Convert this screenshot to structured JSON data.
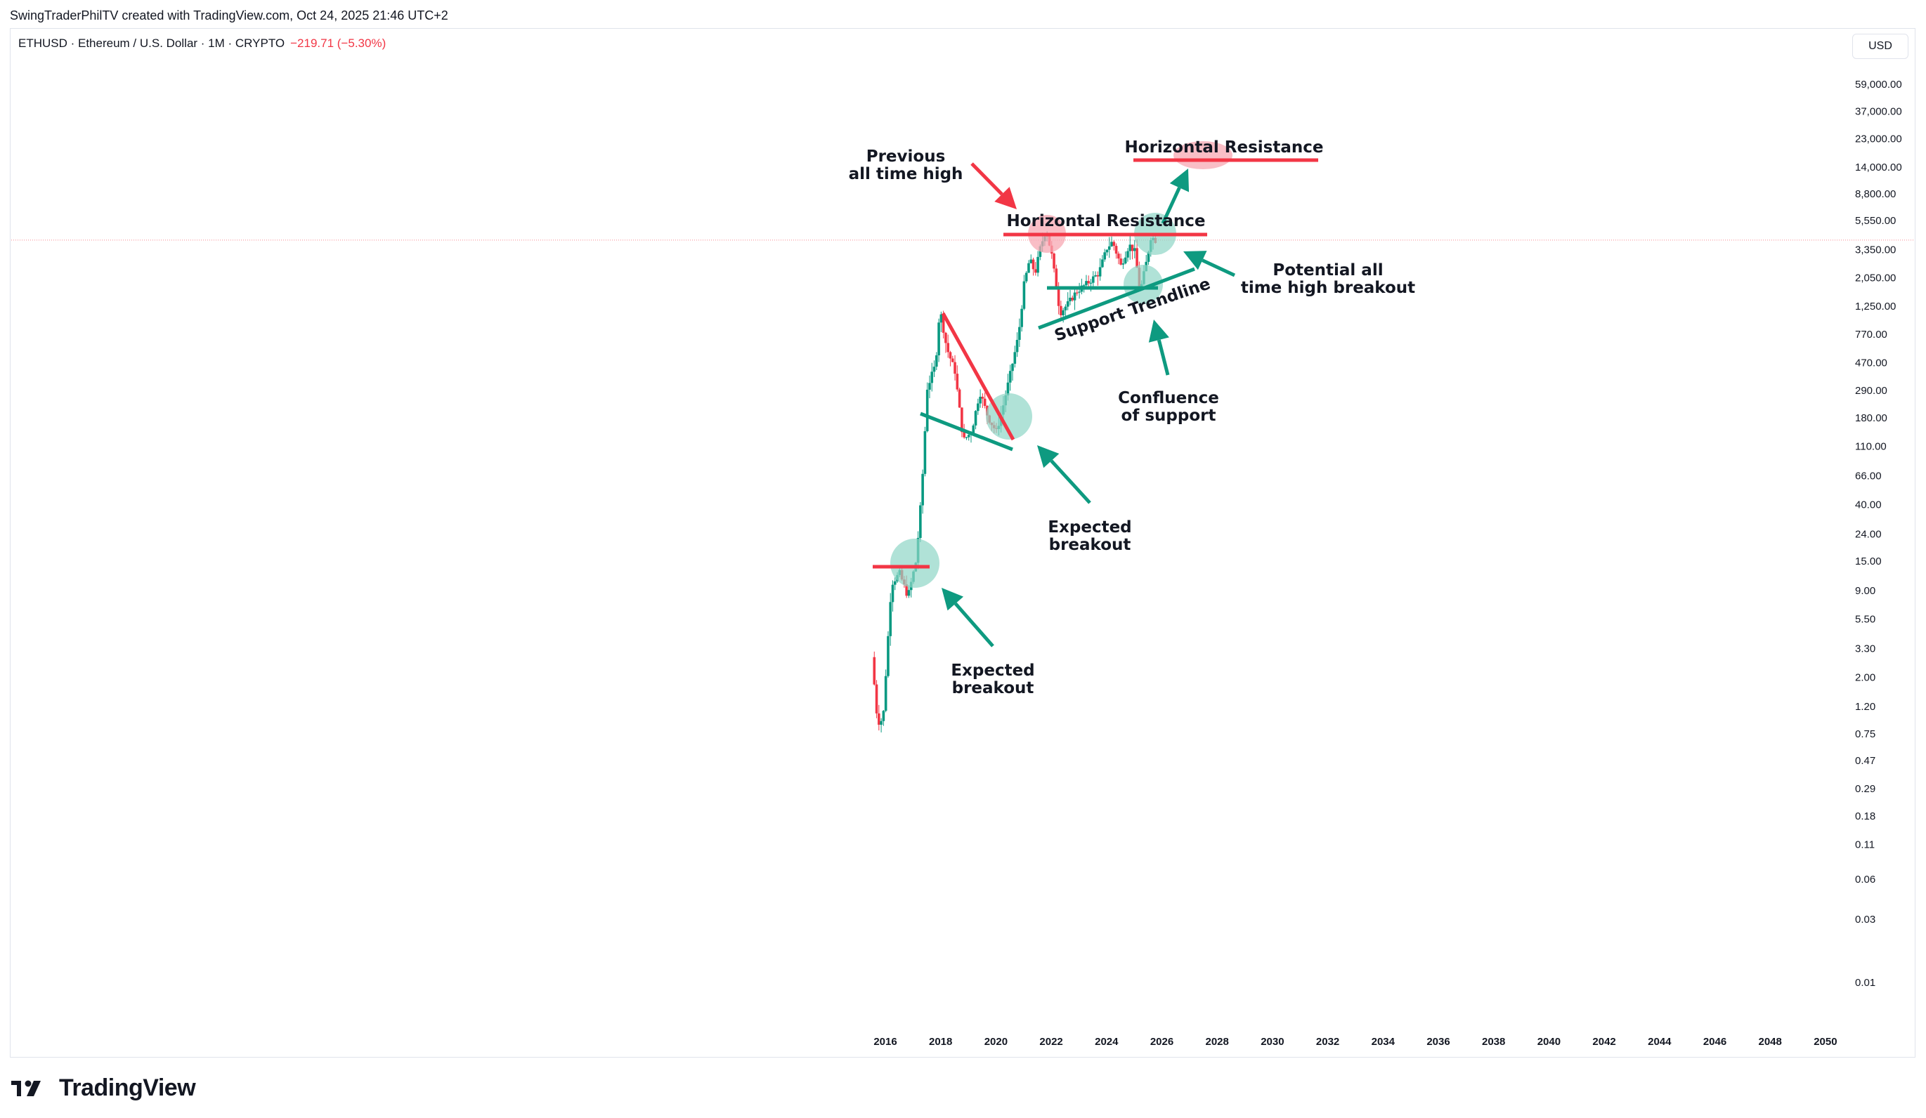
{
  "header": {
    "credit": "SwingTraderPhilTV created with TradingView.com, Oct 24, 2025 21:46 UTC+2"
  },
  "legend": {
    "symbol": "ETHUSD · Ethereum / U.S. Dollar · 1M · CRYPTO",
    "change": "−219.71 (−5.30%)"
  },
  "currency_button": "USD",
  "brand": {
    "logo_icon": "tradingview-logo-icon",
    "name": "TradingView"
  },
  "colors": {
    "up": "#089981",
    "down": "#f23645",
    "resistance": "#f23645",
    "support": "#0e9a80",
    "circle_green": "#8fd6c6",
    "circle_red": "#f7a8b3"
  },
  "chart_data": {
    "type": "candlestick",
    "symbol": "ETHUSD",
    "interval": "1M",
    "y_scale": "log",
    "y_ticks": [
      "59,000.00",
      "37,000.00",
      "23,000.00",
      "14,000.00",
      "8,800.00",
      "5,550.00",
      "3,350.00",
      "2,050.00",
      "1,250.00",
      "770.00",
      "470.00",
      "290.00",
      "180.00",
      "110.00",
      "66.00",
      "40.00",
      "24.00",
      "15.00",
      "9.00",
      "5.50",
      "3.30",
      "2.00",
      "1.20",
      "0.75",
      "0.47",
      "0.29",
      "0.18",
      "0.11",
      "0.06",
      "0.03",
      "0.01"
    ],
    "x_ticks": [
      "2016",
      "2018",
      "2020",
      "2022",
      "2024",
      "2026",
      "2028",
      "2030",
      "2032",
      "2034",
      "2036",
      "2038",
      "2040",
      "2042",
      "2044",
      "2046",
      "2048",
      "2050"
    ],
    "price_path": [
      {
        "t": 2015.6,
        "v": 2.8
      },
      {
        "t": 2015.8,
        "v": 0.9
      },
      {
        "t": 2016.0,
        "v": 0.95
      },
      {
        "t": 2016.3,
        "v": 10
      },
      {
        "t": 2016.6,
        "v": 12
      },
      {
        "t": 2016.9,
        "v": 8
      },
      {
        "t": 2017.2,
        "v": 15
      },
      {
        "t": 2017.4,
        "v": 50
      },
      {
        "t": 2017.6,
        "v": 300
      },
      {
        "t": 2017.9,
        "v": 450
      },
      {
        "t": 2018.05,
        "v": 1200
      },
      {
        "t": 2018.3,
        "v": 600
      },
      {
        "t": 2018.6,
        "v": 400
      },
      {
        "t": 2018.9,
        "v": 120
      },
      {
        "t": 2019.2,
        "v": 140
      },
      {
        "t": 2019.5,
        "v": 280
      },
      {
        "t": 2019.8,
        "v": 180
      },
      {
        "t": 2020.1,
        "v": 140
      },
      {
        "t": 2020.3,
        "v": 200
      },
      {
        "t": 2020.6,
        "v": 380
      },
      {
        "t": 2020.9,
        "v": 750
      },
      {
        "t": 2021.1,
        "v": 1800
      },
      {
        "t": 2021.3,
        "v": 2800
      },
      {
        "t": 2021.5,
        "v": 2200
      },
      {
        "t": 2021.7,
        "v": 3500
      },
      {
        "t": 2021.9,
        "v": 4700
      },
      {
        "t": 2022.1,
        "v": 3000
      },
      {
        "t": 2022.4,
        "v": 1100
      },
      {
        "t": 2022.7,
        "v": 1300
      },
      {
        "t": 2023.0,
        "v": 1600
      },
      {
        "t": 2023.4,
        "v": 1850
      },
      {
        "t": 2023.8,
        "v": 2200
      },
      {
        "t": 2024.1,
        "v": 3400
      },
      {
        "t": 2024.3,
        "v": 3800
      },
      {
        "t": 2024.6,
        "v": 2500
      },
      {
        "t": 2024.9,
        "v": 3600
      },
      {
        "t": 2025.1,
        "v": 3200
      },
      {
        "t": 2025.3,
        "v": 1600
      },
      {
        "t": 2025.5,
        "v": 2500
      },
      {
        "t": 2025.7,
        "v": 4300
      },
      {
        "t": 2025.8,
        "v": 3900
      }
    ],
    "last_price_line": 3900,
    "annotations": [
      {
        "id": "prev-ath-label",
        "lines": [
          "Previous",
          "all time high"
        ]
      },
      {
        "id": "horizontal-resistance-top",
        "lines": [
          "Horizontal Resistance"
        ]
      },
      {
        "id": "horizontal-resistance-mid",
        "lines": [
          "Horizontal Resistance"
        ]
      },
      {
        "id": "potential-ath-breakout",
        "lines": [
          "Potential all",
          "time high breakout"
        ]
      },
      {
        "id": "support-trendline",
        "lines": [
          "Support Trendline"
        ]
      },
      {
        "id": "confluence-support",
        "lines": [
          "Confluence",
          "of support"
        ]
      },
      {
        "id": "expected-breakout-1",
        "lines": [
          "Expected",
          "breakout"
        ]
      },
      {
        "id": "expected-breakout-2",
        "lines": [
          "Expected",
          "breakout"
        ]
      }
    ]
  }
}
